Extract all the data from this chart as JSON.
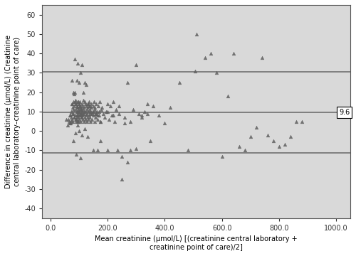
{
  "title": "",
  "xlabel": "Mean creatinine (μmol/L) [(creatinine central laboratory +\ncreatinine point of care)/2]",
  "ylabel": "Difference in creatinine (μmol/L) (Creatinine\ncentral laboratory–creatinine point of care)",
  "xlim": [
    -30,
    1050
  ],
  "ylim": [
    -45,
    65
  ],
  "xticks": [
    0.0,
    200.0,
    400.0,
    600.0,
    800.0,
    1000.0
  ],
  "yticks": [
    -40,
    -30,
    -20,
    -10,
    0,
    10,
    20,
    30,
    40,
    50,
    60
  ],
  "mean_line": 9.6,
  "upper_loa": 30.5,
  "lower_loa": -11.3,
  "label_9_6": "9.6",
  "bg_color": "#d9d9d9",
  "marker_color": "#606060",
  "line_color": "#707070",
  "scatter_x": [
    55,
    60,
    65,
    68,
    70,
    72,
    73,
    75,
    75,
    77,
    78,
    80,
    80,
    82,
    83,
    85,
    86,
    87,
    88,
    89,
    90,
    90,
    91,
    92,
    93,
    94,
    95,
    95,
    96,
    97,
    98,
    99,
    100,
    100,
    101,
    102,
    103,
    104,
    105,
    106,
    107,
    108,
    109,
    110,
    111,
    112,
    113,
    114,
    115,
    116,
    117,
    118,
    119,
    120,
    121,
    122,
    123,
    124,
    125,
    126,
    127,
    128,
    129,
    130,
    131,
    132,
    133,
    134,
    135,
    136,
    137,
    138,
    139,
    140,
    142,
    143,
    145,
    147,
    149,
    150,
    152,
    154,
    155,
    157,
    158,
    160,
    162,
    165,
    167,
    170,
    172,
    175,
    177,
    180,
    185,
    190,
    195,
    200,
    205,
    210,
    215,
    220,
    225,
    230,
    235,
    240,
    250,
    260,
    270,
    280,
    290,
    300,
    310,
    320,
    330,
    340,
    350,
    360,
    380,
    400,
    420,
    450,
    480,
    510,
    540,
    560,
    580,
    600,
    620,
    640,
    660,
    680,
    700,
    720,
    740,
    760,
    780,
    800,
    820,
    840,
    860,
    880
  ],
  "scatter_y": [
    6,
    3,
    5,
    8,
    4,
    10,
    7,
    14,
    6,
    12,
    5,
    15,
    9,
    13,
    7,
    20,
    11,
    8,
    16,
    5,
    14,
    6,
    10,
    13,
    8,
    15,
    12,
    5,
    9,
    11,
    7,
    14,
    10,
    6,
    13,
    8,
    15,
    5,
    11,
    12,
    9,
    7,
    10,
    14,
    6,
    13,
    8,
    16,
    11,
    5,
    9,
    12,
    7,
    15,
    10,
    14,
    6,
    13,
    8,
    11,
    5,
    9,
    7,
    12,
    14,
    6,
    10,
    15,
    8,
    13,
    11,
    7,
    9,
    5,
    12,
    14,
    6,
    10,
    13,
    8,
    15,
    5,
    11,
    9,
    7,
    14,
    10,
    6,
    13,
    8,
    15,
    5,
    11,
    12,
    9,
    7,
    10,
    14,
    6,
    13,
    8,
    15,
    5,
    11,
    -10,
    9,
    -13,
    7,
    25,
    5,
    11,
    -9,
    9,
    7,
    10,
    14,
    -5,
    13,
    8,
    4,
    12,
    25,
    -10,
    50,
    38,
    40,
    30,
    -13,
    18,
    40,
    -8,
    -10,
    -3,
    2,
    38,
    -2,
    -5,
    -8,
    -7,
    -3,
    5,
    5
  ],
  "extra_points": [
    [
      75,
      26
    ],
    [
      85,
      37
    ],
    [
      92,
      26
    ],
    [
      95,
      35
    ],
    [
      100,
      25
    ],
    [
      105,
      30
    ],
    [
      110,
      34
    ],
    [
      115,
      20
    ],
    [
      120,
      25
    ],
    [
      125,
      24
    ],
    [
      130,
      14
    ],
    [
      135,
      13
    ],
    [
      140,
      10
    ],
    [
      145,
      9
    ],
    [
      150,
      10
    ],
    [
      155,
      12
    ],
    [
      160,
      9
    ],
    [
      165,
      8
    ],
    [
      170,
      10
    ],
    [
      175,
      5
    ],
    [
      80,
      -5
    ],
    [
      88,
      -1
    ],
    [
      95,
      3
    ],
    [
      100,
      0
    ],
    [
      110,
      -2
    ],
    [
      120,
      1
    ],
    [
      130,
      -3
    ],
    [
      150,
      -10
    ],
    [
      165,
      -10
    ],
    [
      200,
      -10
    ],
    [
      270,
      -16
    ],
    [
      90,
      -12
    ],
    [
      105,
      -14
    ],
    [
      175,
      -5
    ],
    [
      250,
      -25
    ],
    [
      200,
      10
    ],
    [
      220,
      8
    ],
    [
      240,
      13
    ],
    [
      260,
      4
    ],
    [
      280,
      -10
    ],
    [
      300,
      34
    ],
    [
      320,
      8
    ],
    [
      340,
      9
    ],
    [
      75,
      14
    ],
    [
      80,
      20
    ],
    [
      82,
      19
    ],
    [
      85,
      15
    ],
    [
      88,
      14
    ],
    [
      90,
      6
    ],
    [
      92,
      7
    ],
    [
      94,
      8
    ],
    [
      96,
      10
    ],
    [
      98,
      5
    ],
    [
      100,
      14
    ],
    [
      102,
      12
    ],
    [
      104,
      9
    ],
    [
      106,
      11
    ],
    [
      108,
      8
    ],
    [
      110,
      7
    ],
    [
      63,
      6
    ],
    [
      66,
      4
    ],
    [
      69,
      8
    ],
    [
      72,
      5
    ],
    [
      76,
      9
    ],
    [
      79,
      11
    ],
    [
      83,
      7
    ],
    [
      87,
      6
    ],
    [
      91,
      10
    ],
    [
      93,
      12
    ],
    [
      97,
      15
    ],
    [
      103,
      13
    ],
    [
      107,
      11
    ],
    [
      113,
      9
    ],
    [
      117,
      10
    ],
    [
      505,
      31
    ]
  ]
}
